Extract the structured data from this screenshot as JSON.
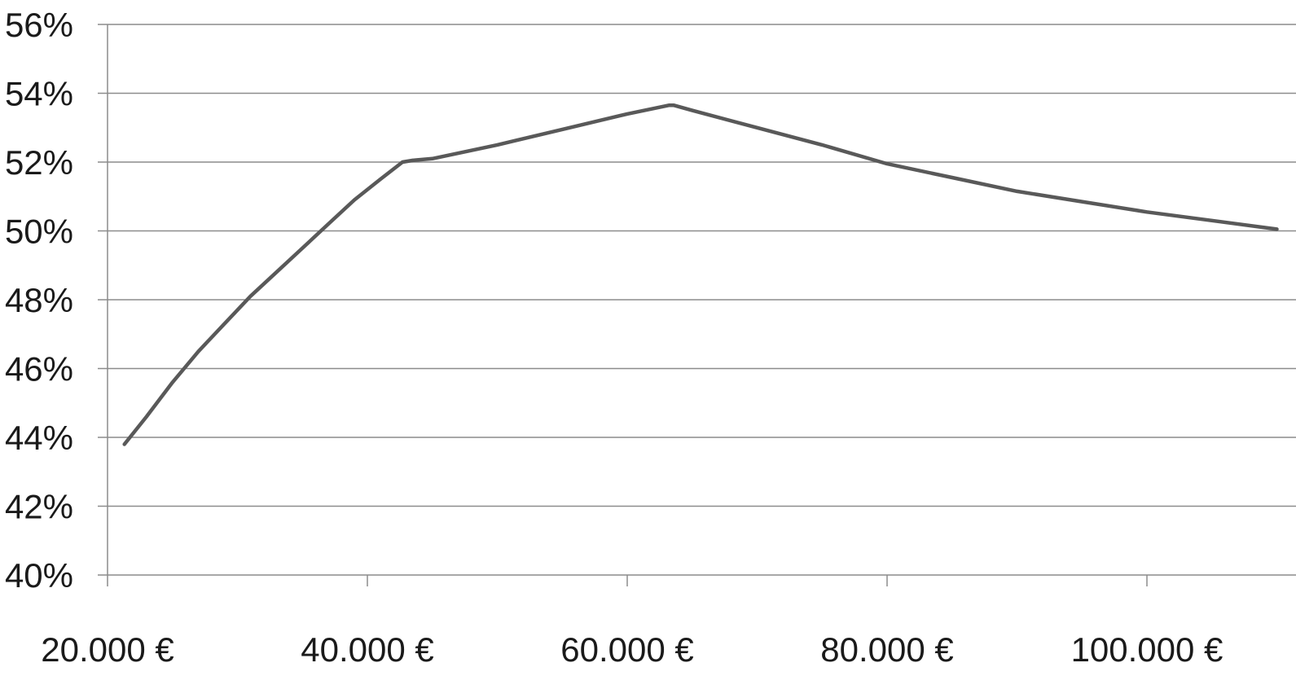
{
  "chart_data": {
    "type": "line",
    "title": "",
    "xlabel": "",
    "ylabel": "",
    "xlim": [
      20000,
      110000
    ],
    "ylim": [
      40,
      56
    ],
    "grid": true,
    "y_ticks": [
      {
        "value": 40,
        "label": "40%"
      },
      {
        "value": 42,
        "label": "42%"
      },
      {
        "value": 44,
        "label": "44%"
      },
      {
        "value": 46,
        "label": "46%"
      },
      {
        "value": 48,
        "label": "48%"
      },
      {
        "value": 50,
        "label": "50%"
      },
      {
        "value": 52,
        "label": "52%"
      },
      {
        "value": 54,
        "label": "54%"
      },
      {
        "value": 56,
        "label": "56%"
      }
    ],
    "x_ticks": [
      {
        "value": 20000,
        "label": "20.000 €"
      },
      {
        "value": 40000,
        "label": "40.000 €"
      },
      {
        "value": 60000,
        "label": "60.000 €"
      },
      {
        "value": 80000,
        "label": "80.000 €"
      },
      {
        "value": 100000,
        "label": "100.000 €"
      }
    ],
    "series": [
      {
        "color": "#595959",
        "x": [
          21300,
          23000,
          25000,
          27000,
          29000,
          31000,
          33000,
          35000,
          37000,
          39000,
          41000,
          42700,
          43500,
          45000,
          50000,
          55000,
          60000,
          63200,
          63600,
          65000,
          70000,
          75000,
          80000,
          85000,
          90000,
          95000,
          100000,
          105000,
          110000
        ],
        "y": [
          43.8,
          44.6,
          45.6,
          46.5,
          47.3,
          48.1,
          48.8,
          49.5,
          50.2,
          50.9,
          51.5,
          52.0,
          52.05,
          52.1,
          52.5,
          52.95,
          53.4,
          53.65,
          53.65,
          53.5,
          53.0,
          52.5,
          51.95,
          51.55,
          51.15,
          50.85,
          50.55,
          50.3,
          50.05
        ]
      }
    ]
  }
}
